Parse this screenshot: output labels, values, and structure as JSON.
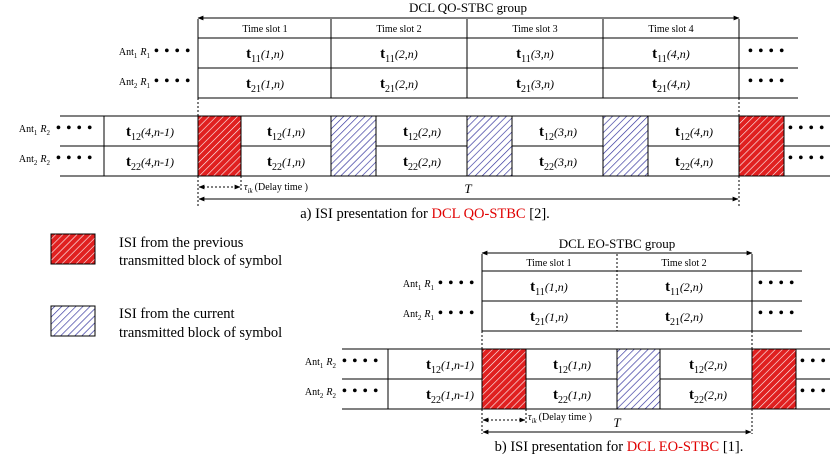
{
  "colors": {
    "isi_previous": "#e02020",
    "isi_current": "#2e2e9a",
    "caption_highlight": "#e00000"
  },
  "dots": "• • • •",
  "top": {
    "group_label": "DCL QO-STBC group",
    "slots": [
      "Time slot 1",
      "Time slot 2",
      "Time slot 3",
      "Time slot 4"
    ],
    "r1_rows": [
      {
        "ant": "Ant",
        "sub": "1",
        "r": "R",
        "rsub": "1",
        "cells": [
          {
            "b": "t",
            "s": "11",
            "a": "(1,n)"
          },
          {
            "b": "t",
            "s": "11",
            "a": "(2,n)"
          },
          {
            "b": "t",
            "s": "11",
            "a": "(3,n)"
          },
          {
            "b": "t",
            "s": "11",
            "a": "(4,n)"
          }
        ]
      },
      {
        "ant": "Ant",
        "sub": "2",
        "r": "R",
        "rsub": "1",
        "cells": [
          {
            "b": "t",
            "s": "21",
            "a": "(1,n)"
          },
          {
            "b": "t",
            "s": "21",
            "a": "(2,n)"
          },
          {
            "b": "t",
            "s": "21",
            "a": "(3,n)"
          },
          {
            "b": "t",
            "s": "21",
            "a": "(4,n)"
          }
        ]
      }
    ],
    "r2_rows": [
      {
        "ant": "Ant",
        "sub": "1",
        "r": "R",
        "rsub": "2",
        "prev": {
          "b": "t",
          "s": "12",
          "a": "(4,n-1)"
        },
        "cells": [
          {
            "b": "t",
            "s": "12",
            "a": "(1,n)"
          },
          {
            "b": "t",
            "s": "12",
            "a": "(2,n)"
          },
          {
            "b": "t",
            "s": "12",
            "a": "(3,n)"
          },
          {
            "b": "t",
            "s": "12",
            "a": "(4,n)"
          }
        ]
      },
      {
        "ant": "Ant",
        "sub": "2",
        "r": "R",
        "rsub": "2",
        "prev": {
          "b": "t",
          "s": "22",
          "a": "(4,n-1)"
        },
        "cells": [
          {
            "b": "t",
            "s": "22",
            "a": "(1,n)"
          },
          {
            "b": "t",
            "s": "22",
            "a": "(2,n)"
          },
          {
            "b": "t",
            "s": "22",
            "a": "(3,n)"
          },
          {
            "b": "t",
            "s": "22",
            "a": "(4,n)"
          }
        ]
      }
    ],
    "delay_tau": "τ",
    "delay_sub": "ik",
    "delay_label": "(Delay time )",
    "period": "T",
    "caption_pre": "a) ISI presentation for ",
    "caption_hl": "DCL QO-STBC",
    "caption_post": " [2]."
  },
  "legend": {
    "prev_line1": "ISI from the previous",
    "prev_line2": "transmitted block of symbol",
    "cur_line1": "ISI from the current",
    "cur_line2": "transmitted block of symbol"
  },
  "bottom": {
    "group_label": "DCL EO-STBC group",
    "slots": [
      "Time slot 1",
      "Time slot 2"
    ],
    "r1_rows": [
      {
        "ant": "Ant",
        "sub": "1",
        "r": "R",
        "rsub": "1",
        "cells": [
          {
            "b": "t",
            "s": "11",
            "a": "(1,n)"
          },
          {
            "b": "t",
            "s": "11",
            "a": "(2,n)"
          }
        ]
      },
      {
        "ant": "Ant",
        "sub": "2",
        "r": "R",
        "rsub": "1",
        "cells": [
          {
            "b": "t",
            "s": "21",
            "a": "(1,n)"
          },
          {
            "b": "t",
            "s": "21",
            "a": "(2,n)"
          }
        ]
      }
    ],
    "r2_rows": [
      {
        "ant": "Ant",
        "sub": "1",
        "r": "R",
        "rsub": "2",
        "prev": {
          "b": "t",
          "s": "12",
          "a": "(1,n-1)"
        },
        "cells": [
          {
            "b": "t",
            "s": "12",
            "a": "(1,n)"
          },
          {
            "b": "t",
            "s": "12",
            "a": "(2,n)"
          }
        ]
      },
      {
        "ant": "Ant",
        "sub": "2",
        "r": "R",
        "rsub": "2",
        "prev": {
          "b": "t",
          "s": "22",
          "a": "(1,n-1)"
        },
        "cells": [
          {
            "b": "t",
            "s": "22",
            "a": "(1,n)"
          },
          {
            "b": "t",
            "s": "22",
            "a": "(2,n)"
          }
        ]
      }
    ],
    "delay_tau": "τ",
    "delay_sub": "ik",
    "delay_label": "(Delay time )",
    "period": "T",
    "caption_pre": "b) ISI presentation for ",
    "caption_hl": "DCL EO-STBC",
    "caption_post": " [1]."
  }
}
